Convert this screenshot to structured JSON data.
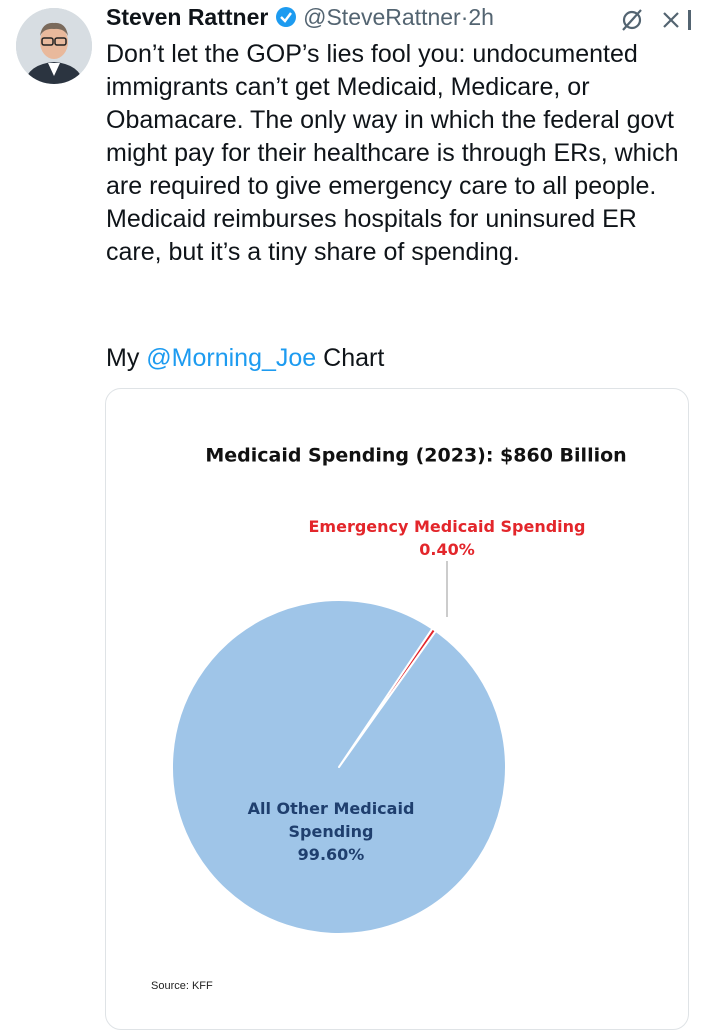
{
  "tweet": {
    "name": "Steven Rattner",
    "handle": "@SteveRattner",
    "separator": "·",
    "time": "2h",
    "text": "Don’t let the GOP’s lies fool you: undocumented immigrants can’t get Medicaid, Medicare, or Obamacare. The only way in which the federal govt might pay for their healthcare is through ERs, which are required to give emergency care to all people. Medicaid reimburses hospitals for uninsured ER care, but it’s a tiny share of spending.",
    "mention_prefix": "My",
    "mention": "@Morning_Joe",
    "mention_suffix": "Chart"
  },
  "chart_data": {
    "type": "pie",
    "title": "Medicaid Spending (2023): $860 Billion",
    "categories": [
      "Emergency Medicaid Spending",
      "All Other Medicaid Spending"
    ],
    "values": [
      0.4,
      99.6
    ],
    "value_labels": [
      "0.40%",
      "99.60%"
    ],
    "colors": [
      "#e3262b",
      "#9fc5e8"
    ],
    "label_colors": [
      "#e3262b",
      "#1f3f6e"
    ],
    "source": "Source: KFF"
  }
}
